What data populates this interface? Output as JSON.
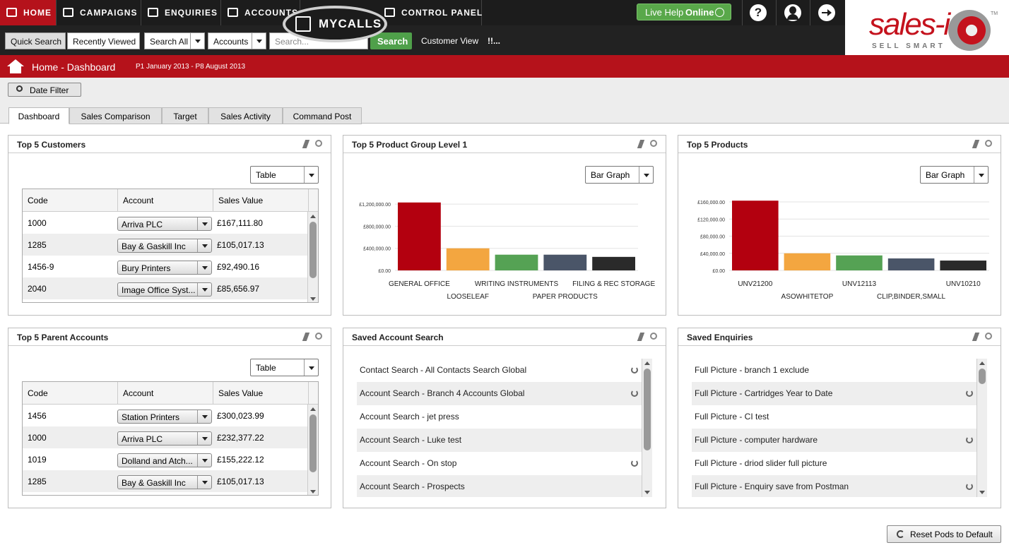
{
  "nav": {
    "items": [
      "HOME",
      "CAMPAIGNS",
      "ENQUIRIES",
      "ACCOUNTS",
      "CONTROL PANEL"
    ],
    "mycalls": "MYCALLS",
    "live_help": "Live Help",
    "live_help_status": "Online",
    "help": "?"
  },
  "logo": {
    "name": "sales-i",
    "tagline": "SELL SMART",
    "tm": "TM"
  },
  "search_bar": {
    "quick_search": "Quick Search",
    "recently_viewed": "Recently Viewed",
    "scope": "Search All",
    "entity": "Accounts",
    "placeholder": "Search...",
    "button": "Search",
    "customer_view": "Customer View",
    "extra": "!!..."
  },
  "breadcrumb": {
    "title": "Home - Dashboard",
    "period": "P1 January 2013 - P8 August 2013"
  },
  "date_filter": "Date Filter",
  "tabs": [
    "Dashboard",
    "Sales Comparison",
    "Target",
    "Sales Activity",
    "Command Post"
  ],
  "pods": [
    {
      "title": "Top 5 Customers",
      "view": "Table",
      "columns": [
        "Code",
        "Account",
        "Sales Value"
      ],
      "rows": [
        [
          "1000",
          "Arriva PLC",
          "£167,111.80"
        ],
        [
          "1285",
          "Bay & Gaskill Inc",
          "£105,017.13"
        ],
        [
          "1456-9",
          "Bury Printers",
          "£92,490.16"
        ],
        [
          "2040",
          "Image Office Syst...",
          "£85,656.97"
        ]
      ]
    },
    {
      "title": "Top 5 Product Group Level 1",
      "view": "Bar Graph",
      "chart_data": {
        "type": "bar",
        "categories": [
          "GENERAL OFFICE",
          "LOOSELEAF",
          "WRITING INSTRUMENTS",
          "PAPER PRODUCTS",
          "FILING & REC STORAGE"
        ],
        "values": [
          1230000,
          400000,
          285000,
          285000,
          245000
        ],
        "colors": [
          "#b3000f",
          "#f3a640",
          "#55a254",
          "#4a5568",
          "#2a2a2a"
        ],
        "ylim": [
          0,
          1240000
        ],
        "yticks": [
          {
            "value": 0,
            "label": "£0.00"
          },
          {
            "value": 400000,
            "label": "£400,000.00"
          },
          {
            "value": 800000,
            "label": "£800,000.00"
          },
          {
            "value": 1200000,
            "label": "£1,200,000.00"
          }
        ],
        "grid": true
      }
    },
    {
      "title": "Top 5 Products",
      "view": "Bar Graph",
      "chart_data": {
        "type": "bar",
        "categories": [
          "UNV21200",
          "ASOWHITETOP",
          "UNV12113",
          "CLIP,BINDER,SMALL",
          "UNV10210"
        ],
        "values": [
          163000,
          40000,
          35000,
          28000,
          23000
        ],
        "colors": [
          "#b3000f",
          "#f3a640",
          "#55a254",
          "#4a5568",
          "#2a2a2a"
        ],
        "ylim": [
          0,
          165000
        ],
        "yticks": [
          {
            "value": 0,
            "label": "£0.00"
          },
          {
            "value": 40000,
            "label": "£40,000.00"
          },
          {
            "value": 80000,
            "label": "£80,000.00"
          },
          {
            "value": 120000,
            "label": "£120,000.00"
          },
          {
            "value": 160000,
            "label": "£160,000.00"
          }
        ],
        "grid": true
      }
    },
    {
      "title": "Top 5 Parent Accounts",
      "view": "Table",
      "columns": [
        "Code",
        "Account",
        "Sales Value"
      ],
      "rows": [
        [
          "1456",
          "Station Printers",
          "£300,023.99"
        ],
        [
          "1000",
          "Arriva PLC",
          "£232,377.22"
        ],
        [
          "1019",
          "Dolland and Atch...",
          "£155,222.12"
        ],
        [
          "1285",
          "Bay & Gaskill Inc",
          "£105,017.13"
        ]
      ]
    },
    {
      "title": "Saved Account Search",
      "items": [
        {
          "label": "Contact Search - All Contacts Search  Global",
          "refresh": true
        },
        {
          "label": "Account Search - Branch 4 Accounts Global",
          "refresh": true
        },
        {
          "label": "Account Search - jet press",
          "refresh": false
        },
        {
          "label": "Account Search - Luke test",
          "refresh": false
        },
        {
          "label": "Account Search - On stop",
          "refresh": true
        },
        {
          "label": "Account Search - Prospects",
          "refresh": false
        }
      ]
    },
    {
      "title": "Saved Enquiries",
      "items": [
        {
          "label": "Full Picture - branch 1 exclude",
          "refresh": false
        },
        {
          "label": "Full Picture - Cartridges Year to Date",
          "refresh": true
        },
        {
          "label": "Full Picture - CI test",
          "refresh": false
        },
        {
          "label": "Full Picture - computer hardware",
          "refresh": true
        },
        {
          "label": "Full Picture - driod slider full picture",
          "refresh": false
        },
        {
          "label": "Full Picture - Enquiry save from Postman",
          "refresh": true
        }
      ]
    }
  ],
  "reset_button": "Reset Pods to Default"
}
